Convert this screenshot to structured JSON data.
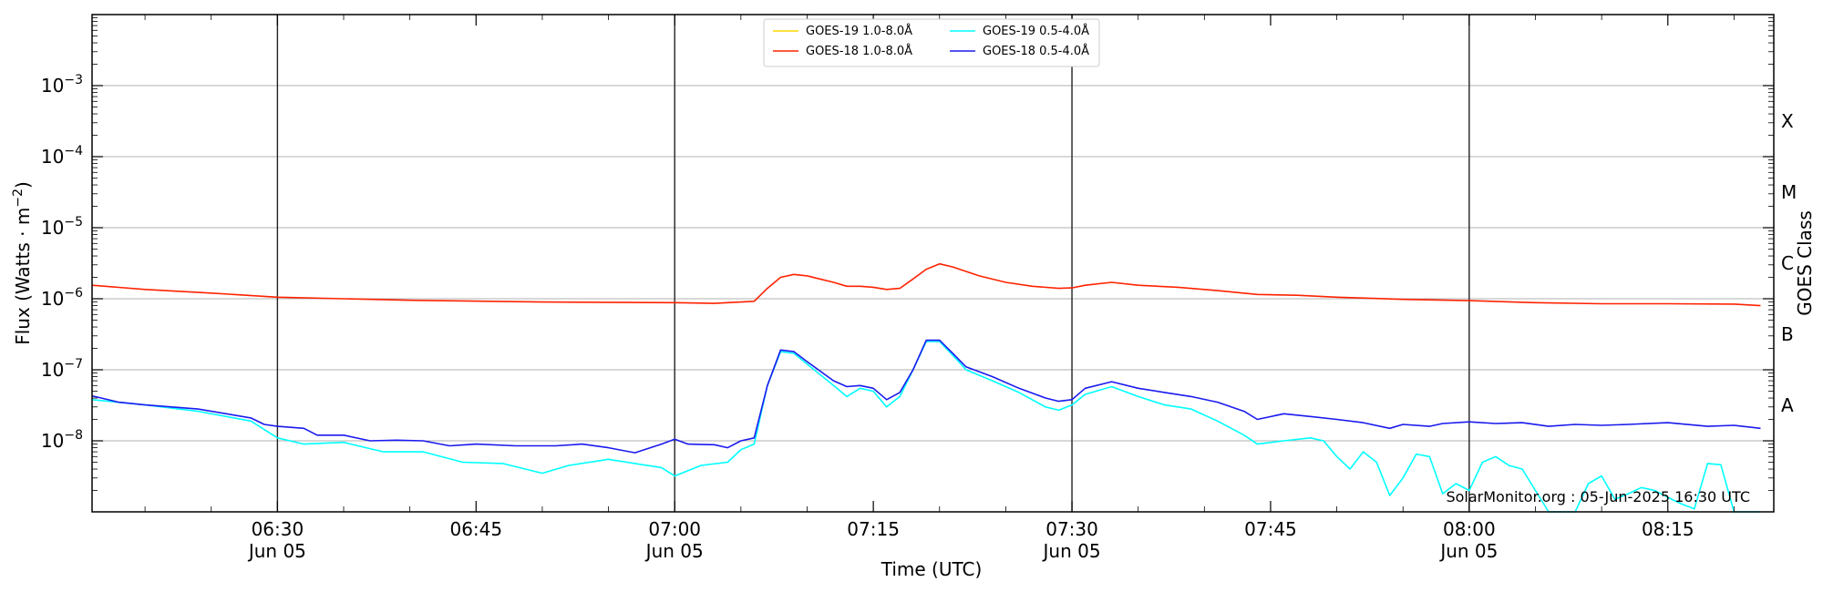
{
  "chart_data": {
    "type": "line",
    "ylabel_base": "Flux (Watts · m",
    "ylabel_sup": "−2",
    "ylabel_close": ")",
    "xlabel": "Time (UTC)",
    "right_label": "GOES Class",
    "credit": "SolarMonitor.org : 05-Jun-2025 16:30 UTC",
    "yscale": "log",
    "xlim": [
      "06:16",
      "08:23"
    ],
    "ylim": [
      1e-09,
      0.01
    ],
    "grid": "horizontal at decades",
    "legend_placement": "top-center",
    "y_ticks": [
      {
        "value": 1e-08,
        "base": "10",
        "exp": "−8"
      },
      {
        "value": 1e-07,
        "base": "10",
        "exp": "−7"
      },
      {
        "value": 1e-06,
        "base": "10",
        "exp": "−6"
      },
      {
        "value": 1e-05,
        "base": "10",
        "exp": "−5"
      },
      {
        "value": 0.0001,
        "base": "10",
        "exp": "−4"
      },
      {
        "value": 0.001,
        "base": "10",
        "exp": "−3"
      }
    ],
    "x_ticks": [
      {
        "time": "06:30",
        "label": "06:30",
        "date": "Jun 05",
        "major": true
      },
      {
        "time": "06:45",
        "label": "06:45",
        "date": "",
        "major": false
      },
      {
        "time": "07:00",
        "label": "07:00",
        "date": "Jun 05",
        "major": true
      },
      {
        "time": "07:15",
        "label": "07:15",
        "date": "",
        "major": false
      },
      {
        "time": "07:30",
        "label": "07:30",
        "date": "Jun 05",
        "major": true
      },
      {
        "time": "07:45",
        "label": "07:45",
        "date": "",
        "major": false
      },
      {
        "time": "08:00",
        "label": "08:00",
        "date": "Jun 05",
        "major": true
      },
      {
        "time": "08:15",
        "label": "08:15",
        "date": "",
        "major": false
      }
    ],
    "goes_classes": [
      {
        "label": "A",
        "lower": 1e-08
      },
      {
        "label": "B",
        "lower": 1e-07
      },
      {
        "label": "C",
        "lower": 1e-06
      },
      {
        "label": "M",
        "lower": 1e-05
      },
      {
        "label": "X",
        "lower": 0.0001
      }
    ],
    "series": [
      {
        "name": "GOES-19 1.0-8.0Å",
        "color": "#ffd700",
        "points": []
      },
      {
        "name": "GOES-19 0.5-4.0Å",
        "color": "#00ffff",
        "points": [
          [
            "06:16",
            3.8e-08
          ],
          [
            "06:20",
            3.2e-08
          ],
          [
            "06:24",
            2.6e-08
          ],
          [
            "06:28",
            1.9e-08
          ],
          [
            "06:30",
            1.1e-08
          ],
          [
            "06:32",
            9e-09
          ],
          [
            "06:35",
            9.5e-09
          ],
          [
            "06:38",
            7e-09
          ],
          [
            "06:41",
            7e-09
          ],
          [
            "06:44",
            5e-09
          ],
          [
            "06:47",
            4.8e-09
          ],
          [
            "06:50",
            3.5e-09
          ],
          [
            "06:52",
            4.5e-09
          ],
          [
            "06:55",
            5.5e-09
          ],
          [
            "06:57",
            4.8e-09
          ],
          [
            "06:59",
            4.2e-09
          ],
          [
            "07:00",
            3.2e-09
          ],
          [
            "07:02",
            4.5e-09
          ],
          [
            "07:04",
            5e-09
          ],
          [
            "07:05",
            7.5e-09
          ],
          [
            "07:06",
            9e-09
          ],
          [
            "07:07",
            6e-08
          ],
          [
            "07:08",
            1.8e-07
          ],
          [
            "07:09",
            1.7e-07
          ],
          [
            "07:10",
            1.2e-07
          ],
          [
            "07:12",
            6e-08
          ],
          [
            "07:13",
            4.2e-08
          ],
          [
            "07:14",
            5.5e-08
          ],
          [
            "07:15",
            5e-08
          ],
          [
            "07:16",
            3e-08
          ],
          [
            "07:17",
            4.2e-08
          ],
          [
            "07:18",
            1e-07
          ],
          [
            "07:19",
            2.5e-07
          ],
          [
            "07:20",
            2.5e-07
          ],
          [
            "07:21",
            1.6e-07
          ],
          [
            "07:22",
            1e-07
          ],
          [
            "07:24",
            7e-08
          ],
          [
            "07:26",
            4.8e-08
          ],
          [
            "07:28",
            3e-08
          ],
          [
            "07:29",
            2.7e-08
          ],
          [
            "07:30",
            3.2e-08
          ],
          [
            "07:31",
            4.5e-08
          ],
          [
            "07:33",
            5.8e-08
          ],
          [
            "07:35",
            4.2e-08
          ],
          [
            "07:37",
            3.2e-08
          ],
          [
            "07:39",
            2.8e-08
          ],
          [
            "07:41",
            1.9e-08
          ],
          [
            "07:43",
            1.2e-08
          ],
          [
            "07:44",
            9e-09
          ],
          [
            "07:46",
            1e-08
          ],
          [
            "07:48",
            1.1e-08
          ],
          [
            "07:49",
            1e-08
          ],
          [
            "07:50",
            6e-09
          ],
          [
            "07:51",
            4e-09
          ],
          [
            "07:52",
            7e-09
          ],
          [
            "07:53",
            5e-09
          ],
          [
            "07:54",
            1.7e-09
          ],
          [
            "07:55",
            3e-09
          ],
          [
            "07:56",
            6.5e-09
          ],
          [
            "07:57",
            6e-09
          ],
          [
            "07:58",
            1.8e-09
          ],
          [
            "07:59",
            2.5e-09
          ],
          [
            "08:00",
            2e-09
          ],
          [
            "08:01",
            5e-09
          ],
          [
            "08:02",
            6e-09
          ],
          [
            "08:03",
            4.5e-09
          ],
          [
            "08:04",
            4e-09
          ],
          [
            "08:05",
            2e-09
          ],
          [
            "08:06",
            1e-09
          ],
          [
            "08:07",
            1e-09
          ],
          [
            "08:08",
            1e-09
          ],
          [
            "08:09",
            2.5e-09
          ],
          [
            "08:10",
            3.2e-09
          ],
          [
            "08:11",
            1.5e-09
          ],
          [
            "08:12",
            1.8e-09
          ],
          [
            "08:13",
            2.2e-09
          ],
          [
            "08:14",
            2e-09
          ],
          [
            "08:15",
            1.6e-09
          ],
          [
            "08:16",
            1.3e-09
          ],
          [
            "08:17",
            1.1e-09
          ],
          [
            "08:18",
            4.8e-09
          ],
          [
            "08:19",
            4.6e-09
          ],
          [
            "08:20",
            1e-09
          ],
          [
            "08:21",
            1e-09
          ],
          [
            "08:22",
            1e-09
          ]
        ]
      },
      {
        "name": "GOES-18 1.0-8.0Å",
        "color": "#ff2200",
        "points": [
          [
            "06:16",
            1.55e-06
          ],
          [
            "06:20",
            1.35e-06
          ],
          [
            "06:25",
            1.2e-06
          ],
          [
            "06:30",
            1.05e-06
          ],
          [
            "06:40",
            9.5e-07
          ],
          [
            "06:50",
            9e-07
          ],
          [
            "07:00",
            8.8e-07
          ],
          [
            "07:03",
            8.6e-07
          ],
          [
            "07:06",
            9.2e-07
          ],
          [
            "07:07",
            1.4e-06
          ],
          [
            "07:08",
            2e-06
          ],
          [
            "07:09",
            2.2e-06
          ],
          [
            "07:10",
            2.1e-06
          ],
          [
            "07:12",
            1.7e-06
          ],
          [
            "07:13",
            1.5e-06
          ],
          [
            "07:14",
            1.5e-06
          ],
          [
            "07:15",
            1.45e-06
          ],
          [
            "07:16",
            1.35e-06
          ],
          [
            "07:17",
            1.4e-06
          ],
          [
            "07:18",
            1.9e-06
          ],
          [
            "07:19",
            2.6e-06
          ],
          [
            "07:20",
            3.1e-06
          ],
          [
            "07:21",
            2.8e-06
          ],
          [
            "07:23",
            2.1e-06
          ],
          [
            "07:25",
            1.7e-06
          ],
          [
            "07:27",
            1.5e-06
          ],
          [
            "07:29",
            1.4e-06
          ],
          [
            "07:30",
            1.42e-06
          ],
          [
            "07:31",
            1.55e-06
          ],
          [
            "07:33",
            1.7e-06
          ],
          [
            "07:35",
            1.55e-06
          ],
          [
            "07:38",
            1.45e-06
          ],
          [
            "07:41",
            1.3e-06
          ],
          [
            "07:44",
            1.15e-06
          ],
          [
            "07:47",
            1.12e-06
          ],
          [
            "07:50",
            1.05e-06
          ],
          [
            "07:55",
            9.8e-07
          ],
          [
            "08:00",
            9.4e-07
          ],
          [
            "08:05",
            8.8e-07
          ],
          [
            "08:10",
            8.5e-07
          ],
          [
            "08:15",
            8.5e-07
          ],
          [
            "08:20",
            8.4e-07
          ],
          [
            "08:22",
            8e-07
          ]
        ]
      },
      {
        "name": "GOES-18 0.5-4.0Å",
        "color": "#1a1aee",
        "points": [
          [
            "06:16",
            4.3e-08
          ],
          [
            "06:18",
            3.5e-08
          ],
          [
            "06:20",
            3.2e-08
          ],
          [
            "06:24",
            2.8e-08
          ],
          [
            "06:28",
            2.1e-08
          ],
          [
            "06:29",
            1.7e-08
          ],
          [
            "06:30",
            1.6e-08
          ],
          [
            "06:32",
            1.5e-08
          ],
          [
            "06:33",
            1.2e-08
          ],
          [
            "06:35",
            1.2e-08
          ],
          [
            "06:37",
            1e-08
          ],
          [
            "06:39",
            1.02e-08
          ],
          [
            "06:41",
            1e-08
          ],
          [
            "06:43",
            8.5e-09
          ],
          [
            "06:45",
            9e-09
          ],
          [
            "06:48",
            8.5e-09
          ],
          [
            "06:51",
            8.5e-09
          ],
          [
            "06:53",
            9e-09
          ],
          [
            "06:55",
            8e-09
          ],
          [
            "06:57",
            6.8e-09
          ],
          [
            "06:59",
            9e-09
          ],
          [
            "07:00",
            1.05e-08
          ],
          [
            "07:01",
            9e-09
          ],
          [
            "07:03",
            8.8e-09
          ],
          [
            "07:04",
            8e-09
          ],
          [
            "07:05",
            1e-08
          ],
          [
            "07:06",
            1.1e-08
          ],
          [
            "07:07",
            6e-08
          ],
          [
            "07:08",
            1.9e-07
          ],
          [
            "07:09",
            1.8e-07
          ],
          [
            "07:10",
            1.3e-07
          ],
          [
            "07:12",
            7e-08
          ],
          [
            "07:13",
            5.8e-08
          ],
          [
            "07:14",
            6e-08
          ],
          [
            "07:15",
            5.5e-08
          ],
          [
            "07:16",
            3.8e-08
          ],
          [
            "07:17",
            4.8e-08
          ],
          [
            "07:18",
            1e-07
          ],
          [
            "07:19",
            2.6e-07
          ],
          [
            "07:20",
            2.6e-07
          ],
          [
            "07:21",
            1.7e-07
          ],
          [
            "07:22",
            1.1e-07
          ],
          [
            "07:24",
            8e-08
          ],
          [
            "07:26",
            5.5e-08
          ],
          [
            "07:28",
            4e-08
          ],
          [
            "07:29",
            3.6e-08
          ],
          [
            "07:30",
            3.8e-08
          ],
          [
            "07:31",
            5.5e-08
          ],
          [
            "07:33",
            6.8e-08
          ],
          [
            "07:35",
            5.5e-08
          ],
          [
            "07:37",
            4.8e-08
          ],
          [
            "07:39",
            4.2e-08
          ],
          [
            "07:41",
            3.5e-08
          ],
          [
            "07:43",
            2.6e-08
          ],
          [
            "07:44",
            2e-08
          ],
          [
            "07:46",
            2.4e-08
          ],
          [
            "07:48",
            2.2e-08
          ],
          [
            "07:50",
            2e-08
          ],
          [
            "07:52",
            1.8e-08
          ],
          [
            "07:54",
            1.5e-08
          ],
          [
            "07:55",
            1.7e-08
          ],
          [
            "07:57",
            1.6e-08
          ],
          [
            "07:58",
            1.75e-08
          ],
          [
            "08:00",
            1.85e-08
          ],
          [
            "08:02",
            1.75e-08
          ],
          [
            "08:04",
            1.8e-08
          ],
          [
            "08:06",
            1.6e-08
          ],
          [
            "08:08",
            1.7e-08
          ],
          [
            "08:10",
            1.65e-08
          ],
          [
            "08:12",
            1.7e-08
          ],
          [
            "08:15",
            1.8e-08
          ],
          [
            "08:18",
            1.6e-08
          ],
          [
            "08:20",
            1.65e-08
          ],
          [
            "08:22",
            1.5e-08
          ]
        ]
      }
    ],
    "legend_order": [
      0,
      2,
      1,
      3
    ]
  }
}
